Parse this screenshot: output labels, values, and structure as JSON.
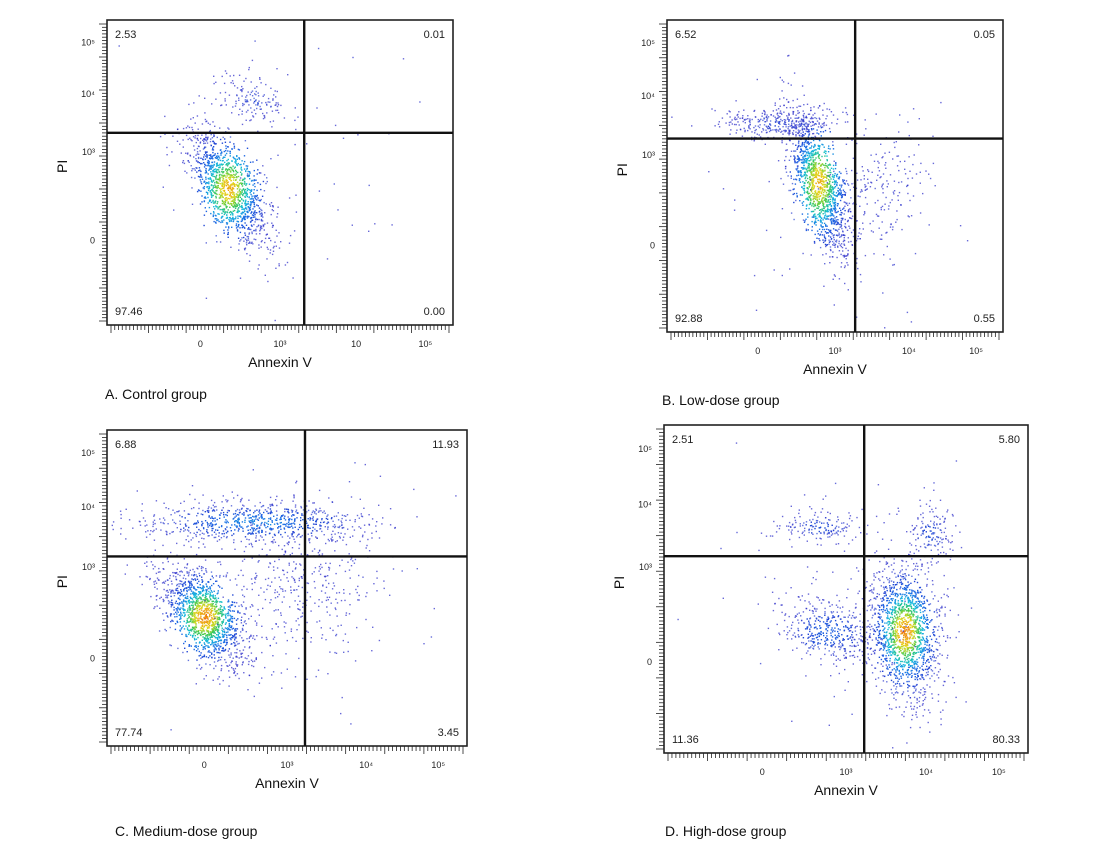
{
  "chart_data": [
    {
      "type": "scatter",
      "caption": "A. Control group",
      "xlabel": "Annexin V",
      "ylabel": "PI",
      "xticks": [
        "0",
        "10³",
        "10",
        "10⁵"
      ],
      "yticks": [
        "10⁵",
        "10⁴",
        "10³",
        "0"
      ],
      "gate": {
        "x": 0.57,
        "y": 0.37
      },
      "quadrants": {
        "UL": "2.53",
        "UR": "0.01",
        "LL": "97.46",
        "LR": "0.00"
      },
      "populations": [
        {
          "cx": 0.35,
          "cy": 0.55,
          "sx": 0.06,
          "sy": 0.1,
          "rho": 0.65,
          "n": 1300,
          "core": 0.9
        },
        {
          "cx": 0.42,
          "cy": 0.26,
          "sx": 0.05,
          "sy": 0.04,
          "rho": 0.2,
          "n": 140,
          "core": 0.15
        },
        {
          "cx": 0.5,
          "cy": 0.4,
          "sx": 0.2,
          "sy": 0.2,
          "rho": 0,
          "n": 50,
          "core": 0
        }
      ]
    },
    {
      "type": "scatter",
      "caption": "B. Low-dose group",
      "xlabel": "Annexin V",
      "ylabel": "PI",
      "xticks": [
        "0",
        "10³",
        "10⁴",
        "10⁵"
      ],
      "yticks": [
        "10⁵",
        "10⁴",
        "10³",
        "0"
      ],
      "gate": {
        "x": 0.56,
        "y": 0.38
      },
      "quadrants": {
        "UL": "6.52",
        "UR": "0.05",
        "LL": "92.88",
        "LR": "0.55"
      },
      "populations": [
        {
          "cx": 0.45,
          "cy": 0.52,
          "sx": 0.05,
          "sy": 0.12,
          "rho": 0.7,
          "n": 1300,
          "core": 0.9
        },
        {
          "cx": 0.33,
          "cy": 0.33,
          "sx": 0.09,
          "sy": 0.025,
          "rho": 0,
          "n": 330,
          "core": 0.15
        },
        {
          "cx": 0.64,
          "cy": 0.52,
          "sx": 0.06,
          "sy": 0.09,
          "rho": 0,
          "n": 160,
          "core": 0
        },
        {
          "cx": 0.5,
          "cy": 0.55,
          "sx": 0.18,
          "sy": 0.2,
          "rho": 0,
          "n": 80,
          "core": 0
        }
      ]
    },
    {
      "type": "scatter",
      "caption": "C. Medium-dose group",
      "xlabel": "Annexin V",
      "ylabel": "PI",
      "xticks": [
        "0",
        "10³",
        "10⁴",
        "10⁵"
      ],
      "yticks": [
        "10⁵",
        "10⁴",
        "10³",
        "0"
      ],
      "gate": {
        "x": 0.55,
        "y": 0.4
      },
      "quadrants": {
        "UL": "6.88",
        "UR": "11.93",
        "LL": "77.74",
        "LR": "3.45"
      },
      "populations": [
        {
          "cx": 0.41,
          "cy": 0.29,
          "sx": 0.17,
          "sy": 0.035,
          "rho": 0,
          "n": 750,
          "core": 0.4
        },
        {
          "cx": 0.27,
          "cy": 0.59,
          "sx": 0.06,
          "sy": 0.08,
          "rho": 0.55,
          "n": 1400,
          "core": 0.95
        },
        {
          "cx": 0.55,
          "cy": 0.5,
          "sx": 0.12,
          "sy": 0.12,
          "rho": 0,
          "n": 350,
          "core": 0
        },
        {
          "cx": 0.5,
          "cy": 0.5,
          "sx": 0.2,
          "sy": 0.2,
          "rho": 0,
          "n": 80,
          "core": 0
        }
      ]
    },
    {
      "type": "scatter",
      "caption": "D. High-dose group",
      "xlabel": "Annexin V",
      "ylabel": "PI",
      "xticks": [
        "0",
        "10³",
        "10⁴",
        "10⁵"
      ],
      "yticks": [
        "10⁵",
        "10⁴",
        "10³",
        "0"
      ],
      "gate": {
        "x": 0.55,
        "y": 0.4
      },
      "quadrants": {
        "UL": "2.51",
        "UR": "5.80",
        "LL": "11.36",
        "LR": "80.33"
      },
      "populations": [
        {
          "cx": 0.66,
          "cy": 0.63,
          "sx": 0.05,
          "sy": 0.1,
          "rho": 0.2,
          "n": 1500,
          "core": 0.95
        },
        {
          "cx": 0.45,
          "cy": 0.63,
          "sx": 0.07,
          "sy": 0.05,
          "rho": 0.35,
          "n": 420,
          "core": 0.3
        },
        {
          "cx": 0.43,
          "cy": 0.31,
          "sx": 0.06,
          "sy": 0.025,
          "rho": 0,
          "n": 150,
          "core": 0.2
        },
        {
          "cx": 0.73,
          "cy": 0.33,
          "sx": 0.03,
          "sy": 0.05,
          "rho": 0,
          "n": 150,
          "core": 0.2
        },
        {
          "cx": 0.5,
          "cy": 0.5,
          "sx": 0.2,
          "sy": 0.2,
          "rho": 0,
          "n": 80,
          "core": 0
        }
      ]
    }
  ]
}
